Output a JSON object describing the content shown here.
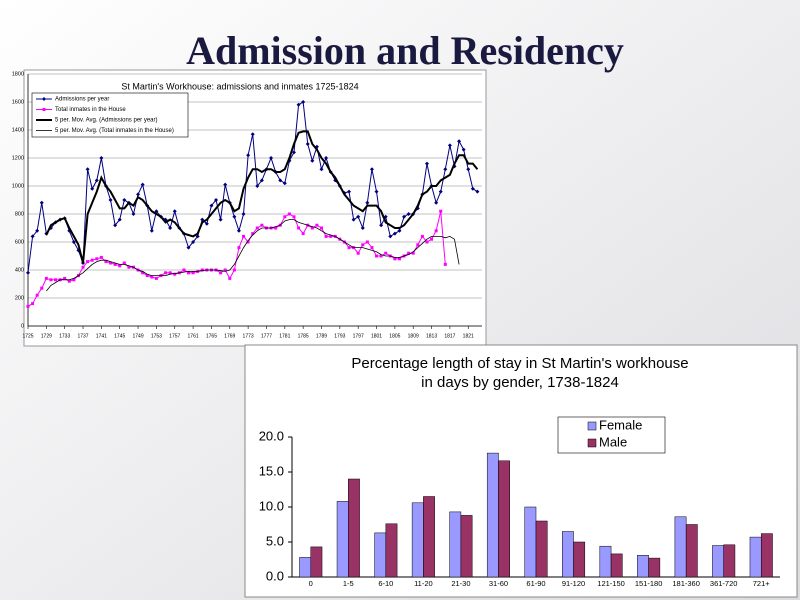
{
  "title": "Admission and Residency",
  "chart_data": [
    {
      "type": "line",
      "title": "St Martin's Workhouse: admissions and inmates 1725-1824",
      "x": [
        1725,
        1726,
        1727,
        1728,
        1729,
        1730,
        1731,
        1732,
        1733,
        1734,
        1735,
        1736,
        1737,
        1738,
        1739,
        1740,
        1741,
        1742,
        1743,
        1744,
        1745,
        1746,
        1747,
        1748,
        1749,
        1750,
        1751,
        1752,
        1753,
        1754,
        1755,
        1756,
        1757,
        1758,
        1759,
        1760,
        1761,
        1762,
        1763,
        1764,
        1765,
        1766,
        1767,
        1768,
        1769,
        1770,
        1771,
        1772,
        1773,
        1774,
        1775,
        1776,
        1777,
        1778,
        1779,
        1780,
        1781,
        1782,
        1783,
        1784,
        1785,
        1786,
        1787,
        1788,
        1789,
        1790,
        1791,
        1792,
        1793,
        1794,
        1795,
        1796,
        1797,
        1798,
        1799,
        1800,
        1801,
        1802,
        1803,
        1804,
        1805,
        1806,
        1807,
        1808,
        1809,
        1810,
        1811,
        1812,
        1813,
        1814,
        1815,
        1816,
        1817,
        1818,
        1819,
        1820,
        1821,
        1822,
        1823
      ],
      "xlim": [
        1725,
        1824
      ],
      "xticks": [
        1725,
        1729,
        1733,
        1737,
        1741,
        1745,
        1749,
        1753,
        1757,
        1761,
        1765,
        1769,
        1773,
        1777,
        1781,
        1785,
        1789,
        1793,
        1797,
        1801,
        1805,
        1809,
        1813,
        1817,
        1821
      ],
      "ylim": [
        0,
        1800
      ],
      "yticks": [
        0,
        200,
        400,
        600,
        800,
        1000,
        1200,
        1400,
        1600,
        1800
      ],
      "grid": true,
      "legend": "upper left",
      "series": [
        {
          "name": "Admissions per year",
          "color": "#000080",
          "marker": "diamond",
          "line_width": 1,
          "values": [
            380,
            640,
            680,
            880,
            660,
            700,
            740,
            760,
            770,
            680,
            600,
            540,
            450,
            1120,
            980,
            1040,
            1200,
            1000,
            900,
            720,
            760,
            900,
            880,
            800,
            940,
            1010,
            860,
            680,
            820,
            780,
            760,
            700,
            820,
            700,
            660,
            560,
            600,
            640,
            760,
            730,
            860,
            900,
            760,
            1010,
            880,
            780,
            680,
            800,
            1220,
            1370,
            1000,
            1040,
            1120,
            1200,
            1100,
            1040,
            1020,
            1180,
            1240,
            1580,
            1600,
            1300,
            1180,
            1280,
            1120,
            1200,
            1100,
            1040,
            1000,
            950,
            960,
            760,
            780,
            700,
            880,
            1120,
            960,
            720,
            780,
            640,
            660,
            680,
            780,
            800,
            800,
            840,
            940,
            1160,
            1000,
            880,
            960,
            1120,
            1290,
            1140,
            1320,
            1260,
            1120,
            980,
            960
          ]
        },
        {
          "name": "Total inmates in the House",
          "color": "#ff00ff",
          "marker": "square",
          "line_width": 1,
          "values": [
            140,
            160,
            220,
            270,
            340,
            330,
            330,
            330,
            340,
            320,
            330,
            360,
            420,
            460,
            470,
            480,
            490,
            460,
            450,
            440,
            430,
            450,
            420,
            420,
            400,
            380,
            360,
            350,
            340,
            360,
            380,
            380,
            370,
            380,
            400,
            380,
            380,
            390,
            400,
            400,
            400,
            400,
            380,
            400,
            340,
            400,
            560,
            640,
            600,
            660,
            700,
            720,
            700,
            700,
            700,
            720,
            780,
            800,
            780,
            700,
            660,
            720,
            700,
            720,
            700,
            640,
            640,
            640,
            620,
            600,
            560,
            560,
            520,
            580,
            600,
            560,
            500,
            500,
            520,
            500,
            480,
            480,
            500,
            520,
            520,
            580,
            640,
            600,
            620,
            680,
            820,
            440,
            null,
            null,
            null,
            null,
            null,
            null,
            null
          ]
        },
        {
          "name": "5 per. Mov. Avg. (Admissions per year)",
          "color": "#000000",
          "marker": "none",
          "line_width": 2,
          "values": [
            null,
            null,
            null,
            null,
            650,
            720,
            740,
            760,
            770,
            700,
            640,
            580,
            450,
            800,
            880,
            960,
            1060,
            1000,
            960,
            900,
            840,
            840,
            880,
            860,
            920,
            900,
            860,
            820,
            800,
            780,
            740,
            760,
            740,
            700,
            660,
            650,
            640,
            660,
            740,
            760,
            800,
            840,
            880,
            900,
            880,
            820,
            840,
            980,
            1060,
            1120,
            1120,
            1100,
            1120,
            1120,
            1100,
            1100,
            1120,
            1200,
            1300,
            1380,
            1390,
            1390,
            1300,
            1260,
            1200,
            1160,
            1100,
            1060,
            1000,
            940,
            900,
            860,
            840,
            820,
            860,
            860,
            860,
            820,
            740,
            720,
            700,
            700,
            720,
            760,
            800,
            860,
            940,
            960,
            1000,
            1000,
            1040,
            1060,
            1080,
            1160,
            1220,
            1220,
            1160,
            1160,
            1120
          ]
        },
        {
          "name": "5 per. Mov. Avg. (Total inmates in the House)",
          "color": "#000000",
          "marker": "none",
          "line_width": 0.8,
          "values": [
            null,
            null,
            null,
            null,
            250,
            290,
            310,
            330,
            330,
            330,
            340,
            360,
            380,
            410,
            440,
            460,
            470,
            470,
            460,
            450,
            440,
            440,
            430,
            420,
            400,
            390,
            370,
            360,
            360,
            360,
            360,
            370,
            375,
            380,
            385,
            390,
            390,
            390,
            395,
            400,
            400,
            400,
            395,
            390,
            400,
            440,
            500,
            560,
            610,
            650,
            680,
            700,
            700,
            700,
            710,
            720,
            750,
            760,
            760,
            740,
            730,
            720,
            710,
            700,
            680,
            660,
            650,
            640,
            620,
            600,
            580,
            560,
            560,
            560,
            550,
            540,
            530,
            510,
            500,
            500,
            490,
            490,
            500,
            510,
            530,
            560,
            590,
            620,
            640,
            640,
            640,
            630,
            640,
            620,
            440,
            null,
            null,
            null,
            null
          ]
        }
      ]
    },
    {
      "type": "bar",
      "title": [
        "Percentage length of stay in St Martin's workhouse",
        "in days by gender, 1738-1824"
      ],
      "categories": [
        "0",
        "1-5",
        "6-10",
        "11-20",
        "21-30",
        "31-60",
        "61-90",
        "91-120",
        "121-150",
        "151-180",
        "181-360",
        "361-720",
        "721+"
      ],
      "ylim": [
        0,
        20
      ],
      "yticks": [
        {
          "value": 0,
          "label": "0.0"
        },
        {
          "value": 5,
          "label": "5.0"
        },
        {
          "value": 10,
          "label": "10.0"
        },
        {
          "value": 15,
          "label": "15.0"
        },
        {
          "value": 20,
          "label": "20.0"
        }
      ],
      "legend": "upper right",
      "series": [
        {
          "name": "Female",
          "color": "#9999ff",
          "values": [
            2.8,
            10.8,
            6.3,
            10.6,
            9.3,
            17.7,
            10.0,
            6.5,
            4.4,
            3.1,
            8.6,
            4.5,
            5.7
          ]
        },
        {
          "name": "Male",
          "color": "#993366",
          "values": [
            4.3,
            14.0,
            7.6,
            11.5,
            8.8,
            16.6,
            8.0,
            5.0,
            3.3,
            2.7,
            7.5,
            4.6,
            6.2
          ]
        }
      ]
    }
  ]
}
